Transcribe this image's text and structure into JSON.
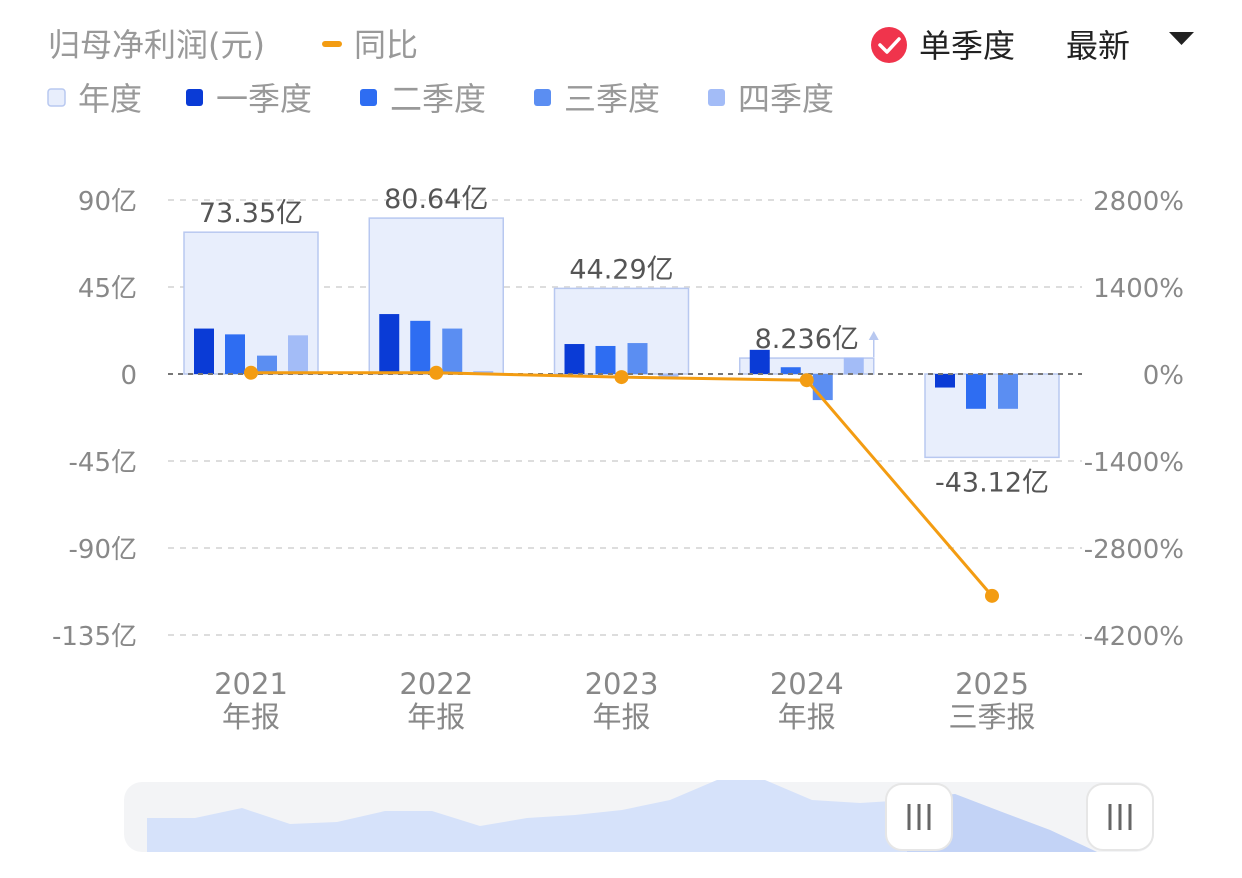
{
  "header": {
    "title": "归母净利润(元)",
    "yoy_label": "同比",
    "single_quarter_label": "单季度",
    "single_quarter_checked": true,
    "period_select": "最新"
  },
  "legend": [
    "年度",
    "一季度",
    "二季度",
    "三季度",
    "四季度"
  ],
  "colors": {
    "annual_fill": "#e8eefc",
    "annual_stroke": "#b8c8f0",
    "q1": "#0a3bd6",
    "q2": "#2e6df2",
    "q3": "#5b8ef2",
    "q4": "#a3bcf7",
    "yoy_line": "#f39c12",
    "check": "#f0344c",
    "axis_text": "#888888",
    "grid": "#dddddd"
  },
  "chart_data": {
    "type": "bar",
    "categories": [
      [
        "2021",
        "年报"
      ],
      [
        "2022",
        "年报"
      ],
      [
        "2023",
        "年报"
      ],
      [
        "2024",
        "年报"
      ],
      [
        "2025",
        "三季报"
      ]
    ],
    "annual": {
      "name": "年度",
      "values": [
        73.35,
        80.64,
        44.29,
        8.236,
        -43.12
      ],
      "labels": [
        "73.35亿",
        "80.64亿",
        "44.29亿",
        "8.236亿",
        "-43.12亿"
      ]
    },
    "series": [
      {
        "name": "一季度",
        "values": [
          23.5,
          31.0,
          15.5,
          12.5,
          -7.0
        ]
      },
      {
        "name": "二季度",
        "values": [
          20.5,
          27.5,
          14.5,
          3.5,
          -18.0
        ]
      },
      {
        "name": "三季度",
        "values": [
          9.5,
          23.5,
          16.0,
          -13.5,
          -18.0
        ]
      },
      {
        "name": "四季度",
        "values": [
          20.0,
          1.5,
          -2.0,
          8.5,
          null
        ]
      }
    ],
    "yoy": {
      "name": "同比",
      "values": [
        20,
        20,
        -50,
        -100,
        -3570
      ]
    },
    "y_left": {
      "ticks": [
        "90亿",
        "45亿",
        "0",
        "-45亿",
        "-90亿",
        "-135亿"
      ],
      "values": [
        90,
        45,
        0,
        -45,
        -90,
        -135
      ],
      "ylim": [
        -135,
        90
      ]
    },
    "y_right": {
      "ticks": [
        "2800%",
        "1400%",
        "0%",
        "-1400%",
        "-2800%",
        "-4200%"
      ],
      "values": [
        2800,
        1400,
        0,
        -1400,
        -2800,
        -4200
      ],
      "ylim": [
        -4200,
        2800
      ]
    },
    "grid": true
  }
}
